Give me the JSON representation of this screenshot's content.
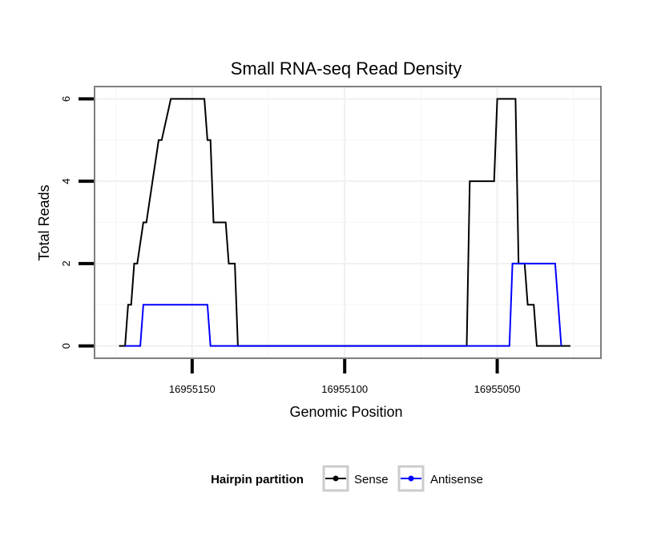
{
  "chart_data": {
    "type": "line",
    "title": "Small RNA-seq Read Density",
    "xlabel": "Genomic Position",
    "ylabel": "Total Reads",
    "x_reversed": true,
    "xlim": [
      16955182,
      16955016
    ],
    "ylim": [
      -0.3,
      6.3
    ],
    "x_ticks": [
      16955150,
      16955100,
      16955050
    ],
    "x_tick_labels": [
      "16955150",
      "16955100",
      "16955050"
    ],
    "y_ticks": [
      0,
      2,
      4,
      6
    ],
    "y_tick_labels": [
      "0",
      "2",
      "4",
      "6"
    ],
    "grid": true,
    "legend": {
      "title": "Hairpin partition",
      "position": "bottom",
      "entries": [
        "Sense",
        "Antisense"
      ]
    },
    "series": [
      {
        "name": "Sense",
        "color": "#000000",
        "x": [
          16955174,
          16955172,
          16955171,
          16955170,
          16955169,
          16955168,
          16955166,
          16955165,
          16955161,
          16955160,
          16955157,
          16955156,
          16955146,
          16955145,
          16955144,
          16955143,
          16955139,
          16955138,
          16955136,
          16955135,
          16955134,
          16955133,
          16955060,
          16955059,
          16955051,
          16955050,
          16955044,
          16955043,
          16955041,
          16955040,
          16955038,
          16955037,
          16955033,
          16955032,
          16955026
        ],
        "values": [
          0,
          0,
          1,
          1,
          2,
          2,
          3,
          3,
          5,
          5,
          6,
          6,
          6,
          5,
          5,
          3,
          3,
          2,
          2,
          0,
          0,
          0,
          0,
          4,
          4,
          6,
          6,
          2,
          2,
          1,
          1,
          0,
          0,
          0,
          0
        ]
      },
      {
        "name": "Antisense",
        "color": "#0000ff",
        "x": [
          16955172,
          16955167,
          16955166,
          16955145,
          16955144,
          16955135,
          16955060,
          16955046,
          16955045,
          16955031,
          16955029
        ],
        "values": [
          0,
          0,
          1,
          1,
          0,
          0,
          0,
          0,
          2,
          2,
          0
        ]
      }
    ]
  }
}
